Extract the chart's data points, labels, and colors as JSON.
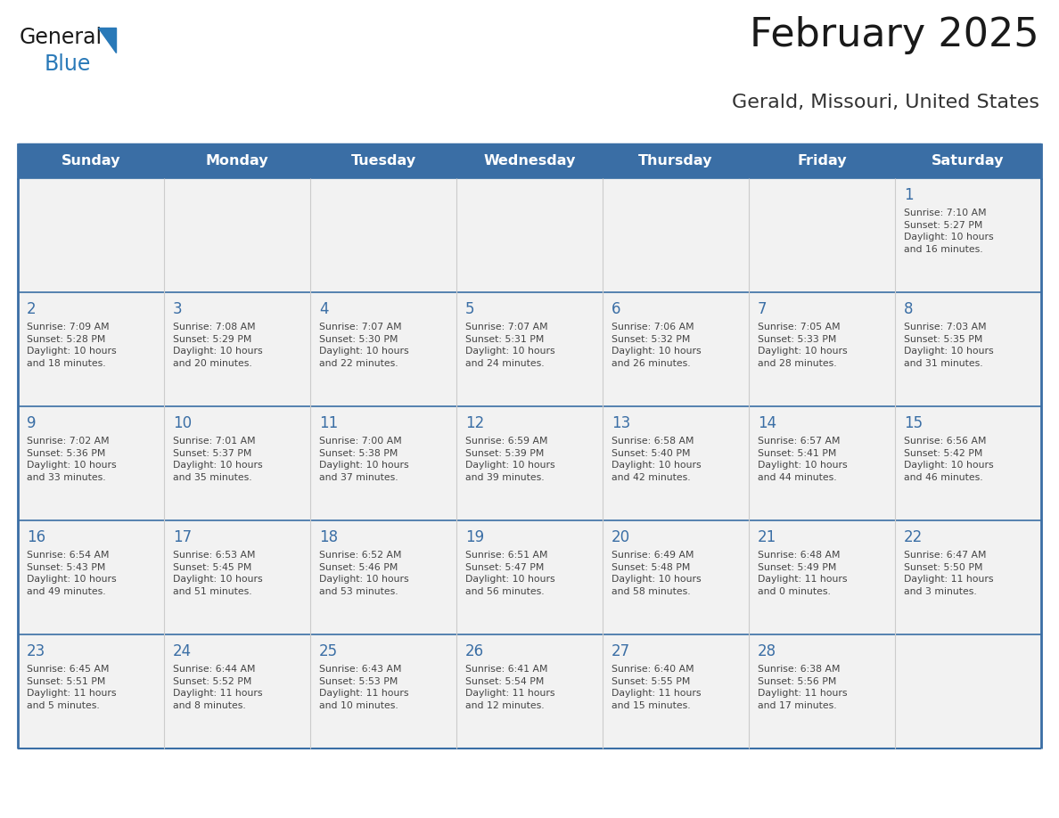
{
  "title": "February 2025",
  "subtitle": "Gerald, Missouri, United States",
  "days_of_week": [
    "Sunday",
    "Monday",
    "Tuesday",
    "Wednesday",
    "Thursday",
    "Friday",
    "Saturday"
  ],
  "header_bg_color": "#3a6ea5",
  "header_text_color": "#ffffff",
  "cell_bg_color": "#f2f2f2",
  "border_color": "#3a6ea5",
  "day_number_color": "#3a6ea5",
  "cell_text_color": "#444444",
  "title_color": "#1a1a1a",
  "subtitle_color": "#333333",
  "logo_general_color": "#1a1a1a",
  "logo_blue_color": "#2979b8",
  "calendar_data": [
    [
      {
        "day": null,
        "info": null
      },
      {
        "day": null,
        "info": null
      },
      {
        "day": null,
        "info": null
      },
      {
        "day": null,
        "info": null
      },
      {
        "day": null,
        "info": null
      },
      {
        "day": null,
        "info": null
      },
      {
        "day": 1,
        "info": "Sunrise: 7:10 AM\nSunset: 5:27 PM\nDaylight: 10 hours\nand 16 minutes."
      }
    ],
    [
      {
        "day": 2,
        "info": "Sunrise: 7:09 AM\nSunset: 5:28 PM\nDaylight: 10 hours\nand 18 minutes."
      },
      {
        "day": 3,
        "info": "Sunrise: 7:08 AM\nSunset: 5:29 PM\nDaylight: 10 hours\nand 20 minutes."
      },
      {
        "day": 4,
        "info": "Sunrise: 7:07 AM\nSunset: 5:30 PM\nDaylight: 10 hours\nand 22 minutes."
      },
      {
        "day": 5,
        "info": "Sunrise: 7:07 AM\nSunset: 5:31 PM\nDaylight: 10 hours\nand 24 minutes."
      },
      {
        "day": 6,
        "info": "Sunrise: 7:06 AM\nSunset: 5:32 PM\nDaylight: 10 hours\nand 26 minutes."
      },
      {
        "day": 7,
        "info": "Sunrise: 7:05 AM\nSunset: 5:33 PM\nDaylight: 10 hours\nand 28 minutes."
      },
      {
        "day": 8,
        "info": "Sunrise: 7:03 AM\nSunset: 5:35 PM\nDaylight: 10 hours\nand 31 minutes."
      }
    ],
    [
      {
        "day": 9,
        "info": "Sunrise: 7:02 AM\nSunset: 5:36 PM\nDaylight: 10 hours\nand 33 minutes."
      },
      {
        "day": 10,
        "info": "Sunrise: 7:01 AM\nSunset: 5:37 PM\nDaylight: 10 hours\nand 35 minutes."
      },
      {
        "day": 11,
        "info": "Sunrise: 7:00 AM\nSunset: 5:38 PM\nDaylight: 10 hours\nand 37 minutes."
      },
      {
        "day": 12,
        "info": "Sunrise: 6:59 AM\nSunset: 5:39 PM\nDaylight: 10 hours\nand 39 minutes."
      },
      {
        "day": 13,
        "info": "Sunrise: 6:58 AM\nSunset: 5:40 PM\nDaylight: 10 hours\nand 42 minutes."
      },
      {
        "day": 14,
        "info": "Sunrise: 6:57 AM\nSunset: 5:41 PM\nDaylight: 10 hours\nand 44 minutes."
      },
      {
        "day": 15,
        "info": "Sunrise: 6:56 AM\nSunset: 5:42 PM\nDaylight: 10 hours\nand 46 minutes."
      }
    ],
    [
      {
        "day": 16,
        "info": "Sunrise: 6:54 AM\nSunset: 5:43 PM\nDaylight: 10 hours\nand 49 minutes."
      },
      {
        "day": 17,
        "info": "Sunrise: 6:53 AM\nSunset: 5:45 PM\nDaylight: 10 hours\nand 51 minutes."
      },
      {
        "day": 18,
        "info": "Sunrise: 6:52 AM\nSunset: 5:46 PM\nDaylight: 10 hours\nand 53 minutes."
      },
      {
        "day": 19,
        "info": "Sunrise: 6:51 AM\nSunset: 5:47 PM\nDaylight: 10 hours\nand 56 minutes."
      },
      {
        "day": 20,
        "info": "Sunrise: 6:49 AM\nSunset: 5:48 PM\nDaylight: 10 hours\nand 58 minutes."
      },
      {
        "day": 21,
        "info": "Sunrise: 6:48 AM\nSunset: 5:49 PM\nDaylight: 11 hours\nand 0 minutes."
      },
      {
        "day": 22,
        "info": "Sunrise: 6:47 AM\nSunset: 5:50 PM\nDaylight: 11 hours\nand 3 minutes."
      }
    ],
    [
      {
        "day": 23,
        "info": "Sunrise: 6:45 AM\nSunset: 5:51 PM\nDaylight: 11 hours\nand 5 minutes."
      },
      {
        "day": 24,
        "info": "Sunrise: 6:44 AM\nSunset: 5:52 PM\nDaylight: 11 hours\nand 8 minutes."
      },
      {
        "day": 25,
        "info": "Sunrise: 6:43 AM\nSunset: 5:53 PM\nDaylight: 11 hours\nand 10 minutes."
      },
      {
        "day": 26,
        "info": "Sunrise: 6:41 AM\nSunset: 5:54 PM\nDaylight: 11 hours\nand 12 minutes."
      },
      {
        "day": 27,
        "info": "Sunrise: 6:40 AM\nSunset: 5:55 PM\nDaylight: 11 hours\nand 15 minutes."
      },
      {
        "day": 28,
        "info": "Sunrise: 6:38 AM\nSunset: 5:56 PM\nDaylight: 11 hours\nand 17 minutes."
      },
      {
        "day": null,
        "info": null
      }
    ]
  ]
}
